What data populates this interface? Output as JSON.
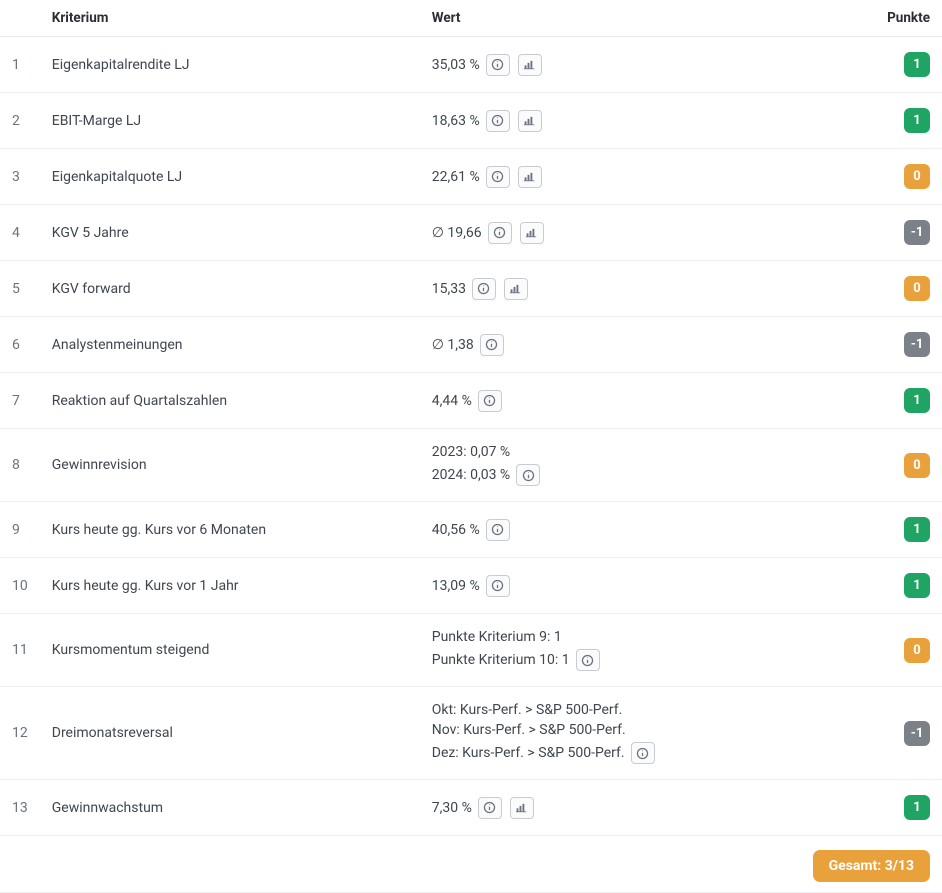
{
  "columns": {
    "kriterium": "Kriterium",
    "wert": "Wert",
    "punkte": "Punkte"
  },
  "colors": {
    "score_green": "#1fa463",
    "score_orange": "#e9a13b",
    "score_gray": "#7a8189",
    "border": "#e6e8eb",
    "text": "#414a55",
    "icon_border": "#c7ccd2"
  },
  "rows": [
    {
      "idx": "1",
      "kriterium": "Eigenkapitalrendite LJ",
      "value_lines": [
        "35,03 %"
      ],
      "has_info": true,
      "has_chart": true,
      "score": "1",
      "score_color": "green"
    },
    {
      "idx": "2",
      "kriterium": "EBIT-Marge LJ",
      "value_lines": [
        "18,63 %"
      ],
      "has_info": true,
      "has_chart": true,
      "score": "1",
      "score_color": "green"
    },
    {
      "idx": "3",
      "kriterium": "Eigenkapitalquote LJ",
      "value_lines": [
        "22,61 %"
      ],
      "has_info": true,
      "has_chart": true,
      "score": "0",
      "score_color": "orange"
    },
    {
      "idx": "4",
      "kriterium": "KGV 5 Jahre",
      "value_lines": [
        "∅ 19,66"
      ],
      "has_info": true,
      "has_chart": true,
      "score": "-1",
      "score_color": "gray"
    },
    {
      "idx": "5",
      "kriterium": "KGV forward",
      "value_lines": [
        "15,33"
      ],
      "has_info": true,
      "has_chart": true,
      "score": "0",
      "score_color": "orange"
    },
    {
      "idx": "6",
      "kriterium": "Analystenmeinungen",
      "value_lines": [
        "∅ 1,38"
      ],
      "has_info": true,
      "has_chart": false,
      "score": "-1",
      "score_color": "gray"
    },
    {
      "idx": "7",
      "kriterium": "Reaktion auf Quartalszahlen",
      "value_lines": [
        "4,44 %"
      ],
      "has_info": true,
      "has_chart": false,
      "score": "1",
      "score_color": "green"
    },
    {
      "idx": "8",
      "kriterium": "Gewinnrevision",
      "value_lines": [
        "2023: 0,07 %",
        "2024: 0,03 %"
      ],
      "has_info": true,
      "has_chart": false,
      "score": "0",
      "score_color": "orange"
    },
    {
      "idx": "9",
      "kriterium": "Kurs heute gg. Kurs vor 6 Monaten",
      "value_lines": [
        "40,56 %"
      ],
      "has_info": true,
      "has_chart": false,
      "score": "1",
      "score_color": "green"
    },
    {
      "idx": "10",
      "kriterium": "Kurs heute gg. Kurs vor 1 Jahr",
      "value_lines": [
        "13,09 %"
      ],
      "has_info": true,
      "has_chart": false,
      "score": "1",
      "score_color": "green"
    },
    {
      "idx": "11",
      "kriterium": "Kursmomentum steigend",
      "value_lines": [
        "Punkte Kriterium 9: 1",
        "Punkte Kriterium 10: 1"
      ],
      "has_info": true,
      "has_chart": false,
      "score": "0",
      "score_color": "orange"
    },
    {
      "idx": "12",
      "kriterium": "Dreimonatsreversal",
      "value_lines": [
        "Okt: Kurs-Perf. > S&P 500-Perf.",
        "Nov: Kurs-Perf. > S&P 500-Perf.",
        "Dez: Kurs-Perf. > S&P 500-Perf."
      ],
      "has_info": true,
      "has_chart": false,
      "score": "-1",
      "score_color": "gray"
    },
    {
      "idx": "13",
      "kriterium": "Gewinnwachstum",
      "value_lines": [
        "7,30 %"
      ],
      "has_info": true,
      "has_chart": true,
      "score": "1",
      "score_color": "green"
    }
  ],
  "total": {
    "label": "Gesamt: 3/13",
    "color": "orange"
  }
}
